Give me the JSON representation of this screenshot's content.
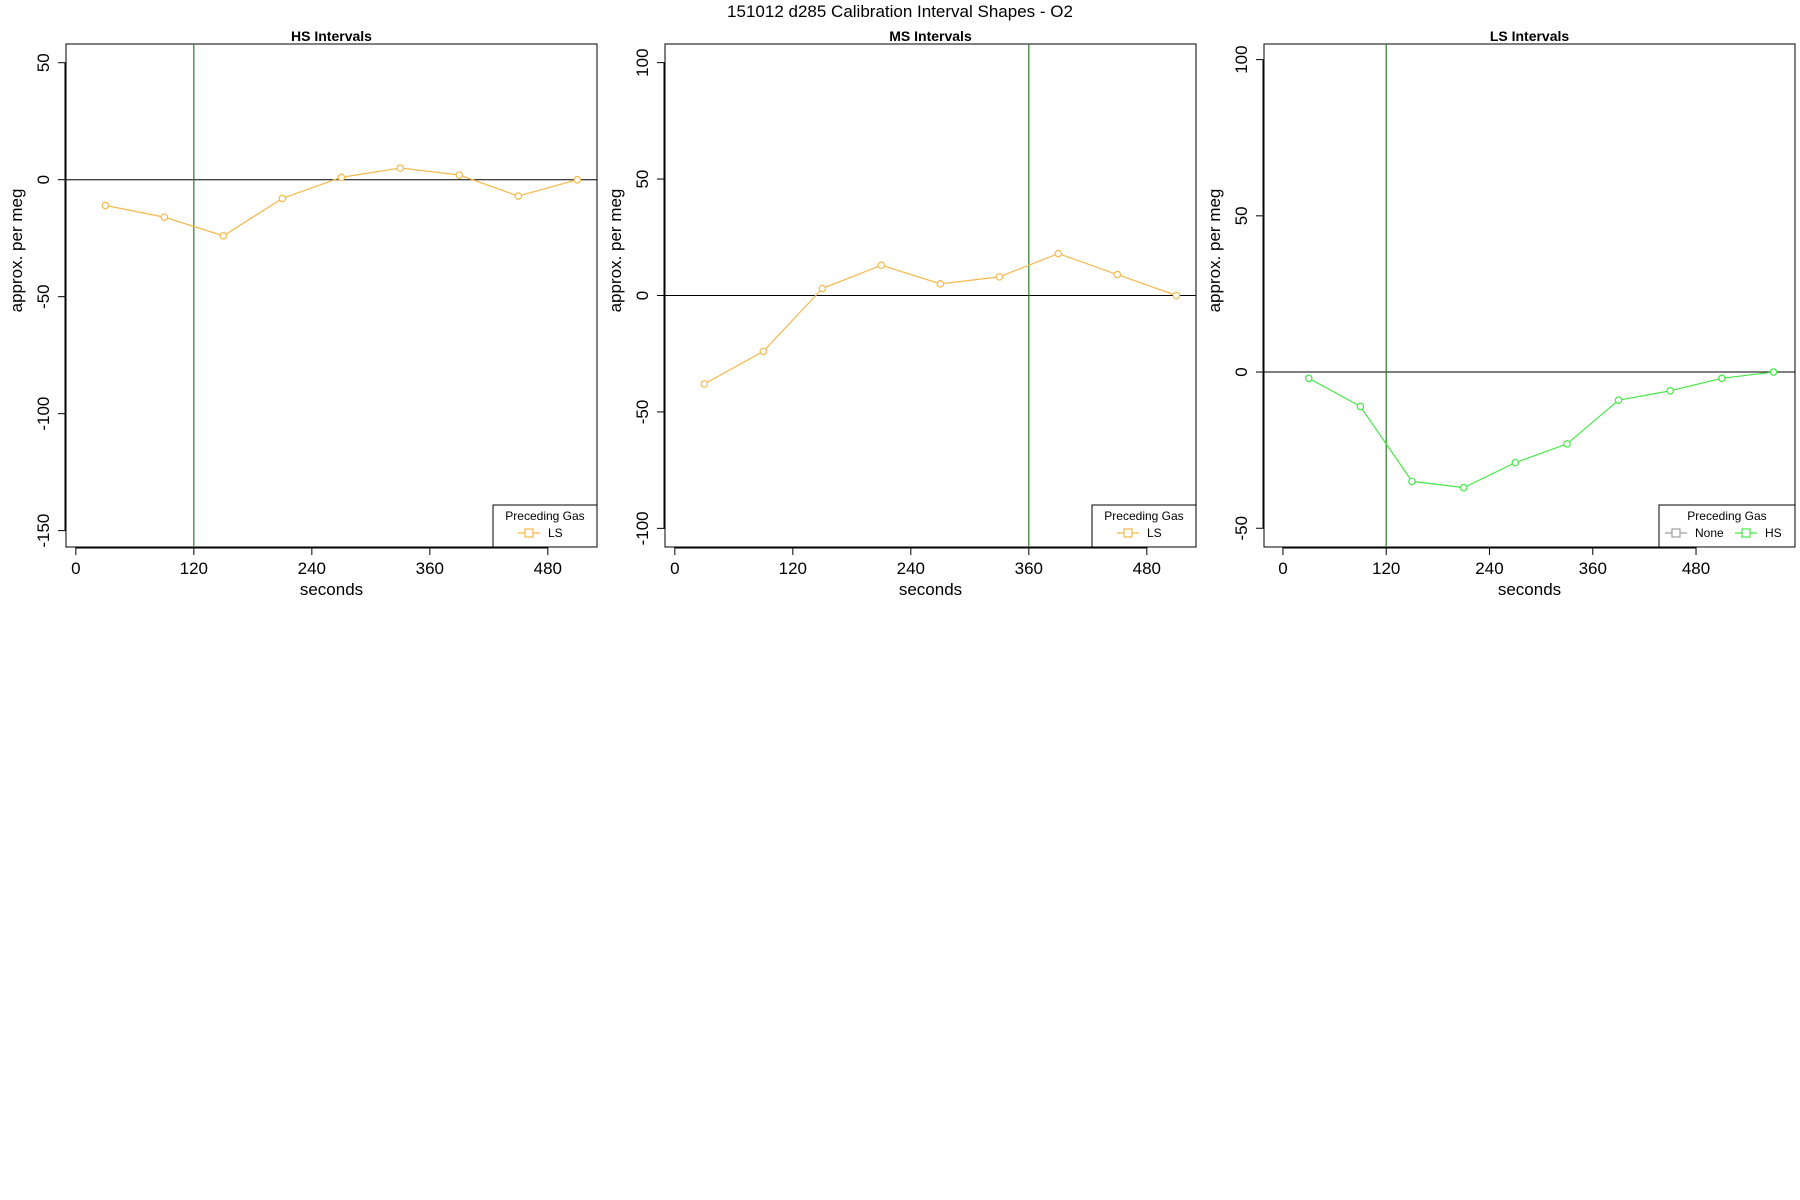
{
  "figure": {
    "title": "151012   d285   Calibration Interval Shapes - O2"
  },
  "chart_data": [
    {
      "type": "line",
      "title": "HS Intervals",
      "xlabel": "seconds",
      "ylabel": "approx. per meg",
      "xlim": [
        -10,
        530
      ],
      "ylim": [
        -157,
        58
      ],
      "xticks": [
        0,
        120,
        240,
        360,
        480
      ],
      "yticks": [
        -150,
        -100,
        -50,
        0,
        50
      ],
      "vline": 120,
      "hline": 0,
      "legend": {
        "title": "Preceding Gas",
        "position": "bottom-right",
        "entries": [
          {
            "label": "LS",
            "color": "#f5b84a"
          }
        ]
      },
      "series": [
        {
          "name": "LS",
          "color": "#f5b84a",
          "x": [
            30,
            90,
            150,
            210,
            270,
            330,
            390,
            450,
            510
          ],
          "y": [
            -11,
            -16,
            -24,
            -8,
            1,
            5,
            2,
            -7,
            0
          ]
        }
      ]
    },
    {
      "type": "line",
      "title": "MS Intervals",
      "xlabel": "seconds",
      "ylabel": "approx. per meg",
      "xlim": [
        -10,
        530
      ],
      "ylim": [
        -108,
        108
      ],
      "xticks": [
        0,
        120,
        240,
        360,
        480
      ],
      "yticks": [
        -100,
        -50,
        0,
        50,
        100
      ],
      "vline": 360,
      "hline": 0,
      "legend": {
        "title": "Preceding Gas",
        "position": "bottom-right",
        "entries": [
          {
            "label": "LS",
            "color": "#f5b84a"
          }
        ]
      },
      "series": [
        {
          "name": "LS",
          "color": "#f5b84a",
          "x": [
            30,
            90,
            150,
            210,
            270,
            330,
            390,
            450,
            510
          ],
          "y": [
            -38,
            -24,
            3,
            13,
            5,
            8,
            18,
            9,
            0
          ]
        }
      ]
    },
    {
      "type": "line",
      "title": "LS Intervals",
      "xlabel": "seconds",
      "ylabel": "approx. per meg",
      "xlim": [
        -22,
        595
      ],
      "ylim": [
        -56,
        105
      ],
      "xticks": [
        0,
        120,
        240,
        360,
        480
      ],
      "yticks": [
        -50,
        0,
        50,
        100
      ],
      "vline": 120,
      "hline": 0,
      "legend": {
        "title": "Preceding Gas",
        "position": "bottom-right",
        "entries": [
          {
            "label": "None",
            "color": "#9e9e9e"
          },
          {
            "label": "HS",
            "color": "#44e844"
          }
        ]
      },
      "series": [
        {
          "name": "HS",
          "color": "#44e844",
          "x": [
            30,
            90,
            150,
            210,
            270,
            330,
            390,
            450,
            510,
            570
          ],
          "y": [
            -2,
            -11,
            -35,
            -37,
            -29,
            -23,
            -9,
            -6,
            -2,
            0
          ]
        }
      ]
    }
  ]
}
